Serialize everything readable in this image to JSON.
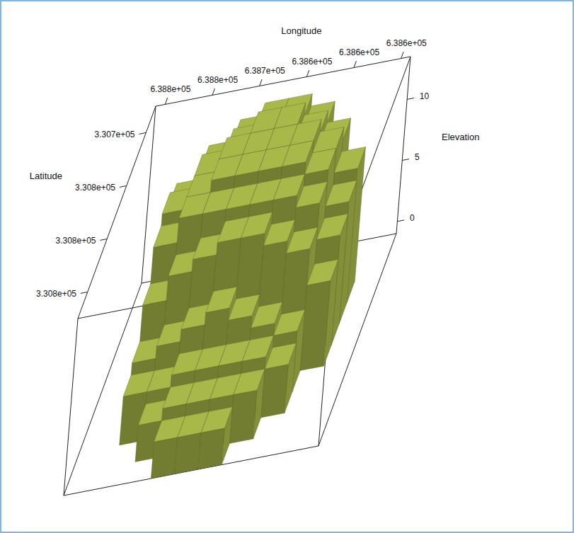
{
  "chart_data": {
    "type": "surface3d",
    "xlabel": "Longitude",
    "ylabel": "Latitude",
    "zlabel": "Elevation",
    "color": "#a9b949",
    "xlim": [
      638540,
      638810
    ],
    "ylim": [
      330675,
      330875
    ],
    "zlim": [
      -1,
      13.5
    ],
    "xticks": [
      {
        "value": 638550,
        "label": "6.386e+05"
      },
      {
        "value": 638600,
        "label": "6.386e+05"
      },
      {
        "value": 638650,
        "label": "6.386e+05"
      },
      {
        "value": 638700,
        "label": "6.387e+05"
      },
      {
        "value": 638750,
        "label": "6.388e+05"
      },
      {
        "value": 638800,
        "label": "6.388e+05"
      }
    ],
    "yticks": [
      {
        "value": 330700,
        "label": "3.307e+05"
      },
      {
        "value": 330750,
        "label": "3.308e+05"
      },
      {
        "value": 330800,
        "label": "3.308e+05"
      },
      {
        "value": 330850,
        "label": "3.308e+05"
      }
    ],
    "zticks": [
      0,
      5,
      10
    ],
    "x": [
      638555,
      638580,
      638605,
      638630,
      638655,
      638680,
      638705,
      638730,
      638755,
      638780
    ],
    "y": [
      330685,
      330705,
      330725,
      330745,
      330765,
      330785,
      330805,
      330825,
      330845,
      330865
    ],
    "z": [
      [
        null,
        null,
        null,
        11,
        12,
        12,
        11,
        null,
        null,
        null
      ],
      [
        null,
        null,
        11,
        12,
        13,
        13,
        12,
        11,
        null,
        null
      ],
      [
        null,
        10,
        12,
        13,
        13,
        13,
        13,
        12,
        10,
        null
      ],
      [
        null,
        9,
        12,
        13,
        13,
        13,
        13,
        12,
        11,
        null
      ],
      [
        null,
        8,
        11,
        12,
        12,
        12,
        12,
        12,
        10,
        null
      ],
      [
        null,
        6,
        9,
        10,
        11,
        11,
        10,
        9,
        7,
        null
      ],
      [
        null,
        null,
        4,
        5,
        6,
        7,
        6,
        5,
        4,
        null
      ],
      [
        null,
        null,
        3,
        4,
        4,
        4,
        4,
        3,
        3,
        null
      ],
      [
        null,
        null,
        null,
        3,
        3,
        3,
        3,
        2,
        null,
        null
      ],
      [
        null,
        null,
        null,
        null,
        2,
        2,
        2,
        null,
        null,
        null
      ]
    ]
  }
}
